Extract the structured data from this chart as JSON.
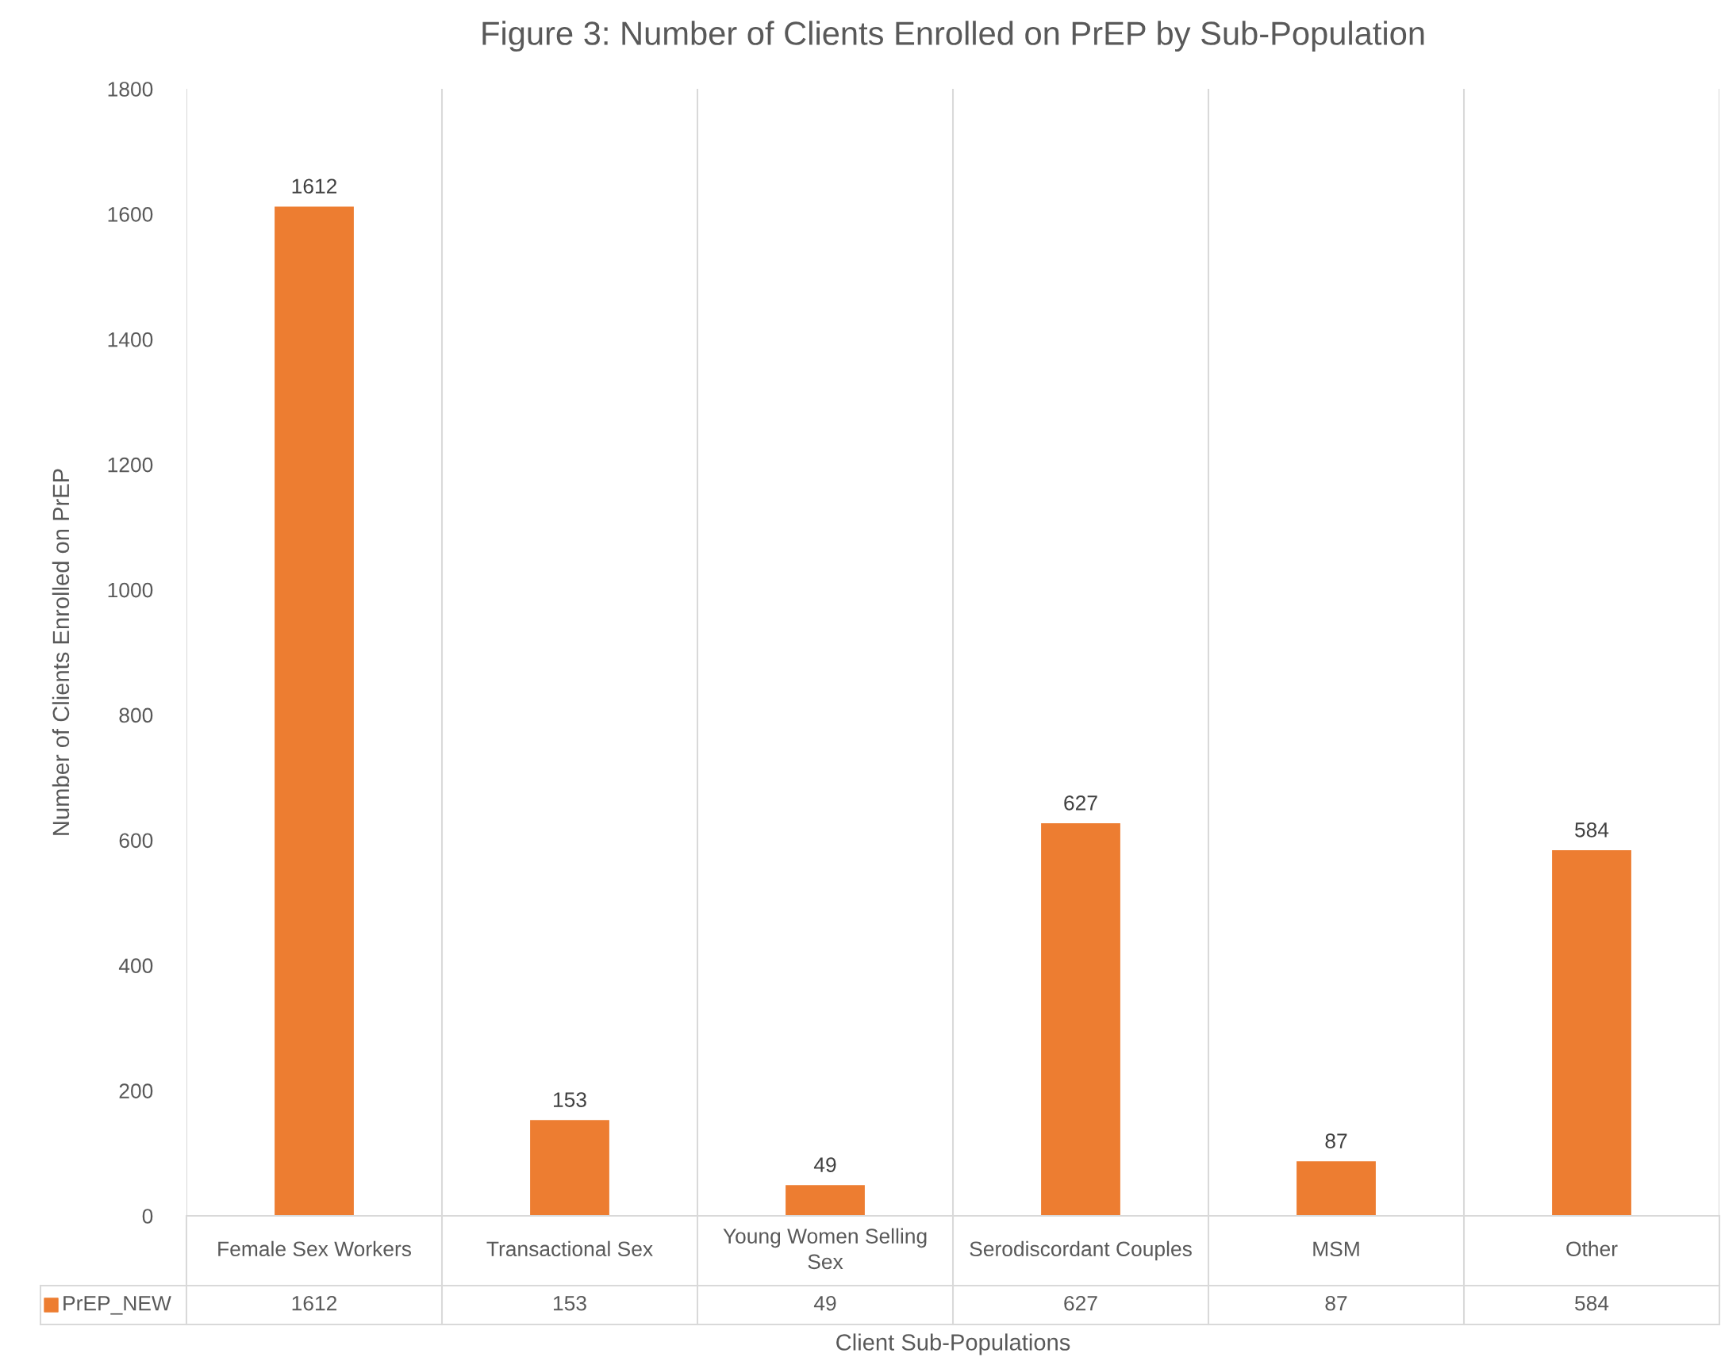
{
  "chart_data": {
    "type": "bar",
    "title": "Figure 3: Number of Clients Enrolled on PrEP by Sub-Population",
    "xlabel": "Client Sub-Populations",
    "ylabel": "Number of Clients Enrolled on PrEP",
    "categories": [
      "Female Sex Workers",
      "Transactional Sex",
      "Young Women Selling Sex",
      "Serodiscordant Couples",
      "MSM",
      "Other"
    ],
    "series": [
      {
        "name": "PrEP_NEW",
        "color": "#ed7d31",
        "values": [
          1612,
          153,
          49,
          627,
          87,
          584
        ],
        "value_labels": [
          "1612",
          "153",
          "49",
          "627",
          "87",
          "584"
        ]
      }
    ],
    "ylim": [
      0,
      1800
    ],
    "yticks": [
      0,
      200,
      400,
      600,
      800,
      1000,
      1200,
      1400,
      1600,
      1800
    ],
    "annotations": [
      "1612",
      "153",
      "49",
      "627",
      "87",
      "584"
    ],
    "grid": "x",
    "legend": "bottom"
  }
}
